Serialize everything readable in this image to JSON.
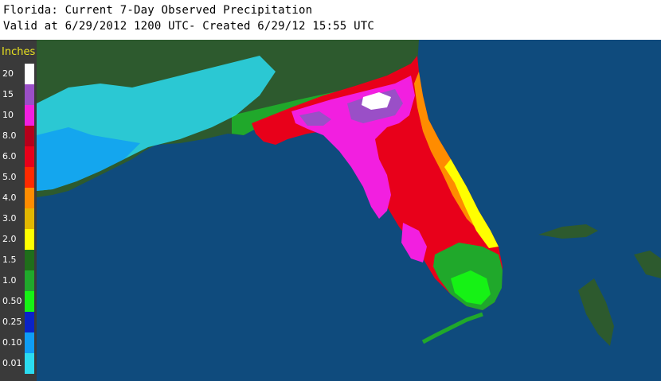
{
  "header": {
    "line1": "Florida: Current 7-Day Observed Precipitation",
    "line2": "Valid at 6/29/2012 1200 UTC- Created 6/29/12 15:55 UTC"
  },
  "legend": {
    "title": "Inches",
    "items": [
      {
        "label": "20",
        "color": "#ffffff"
      },
      {
        "label": "15",
        "color": "#9a4fc7"
      },
      {
        "label": "10",
        "color": "#f21fe0"
      },
      {
        "label": "8.0",
        "color": "#b5001b"
      },
      {
        "label": "6.0",
        "color": "#e8001a"
      },
      {
        "label": "5.0",
        "color": "#ff2a00"
      },
      {
        "label": "4.0",
        "color": "#ff8c00"
      },
      {
        "label": "3.0",
        "color": "#e2b700"
      },
      {
        "label": "2.0",
        "color": "#ffff00"
      },
      {
        "label": "1.5",
        "color": "#1f6e1a"
      },
      {
        "label": "1.0",
        "color": "#20a82b"
      },
      {
        "label": "0.50",
        "color": "#16f215"
      },
      {
        "label": "0.25",
        "color": "#0a23c8"
      },
      {
        "label": "0.10",
        "color": "#0f9df5"
      },
      {
        "label": "0.01",
        "color": "#2bdcf0"
      }
    ]
  },
  "map": {
    "ocean_color": "#0f4b7d",
    "land_color": "#2d5a2e"
  }
}
